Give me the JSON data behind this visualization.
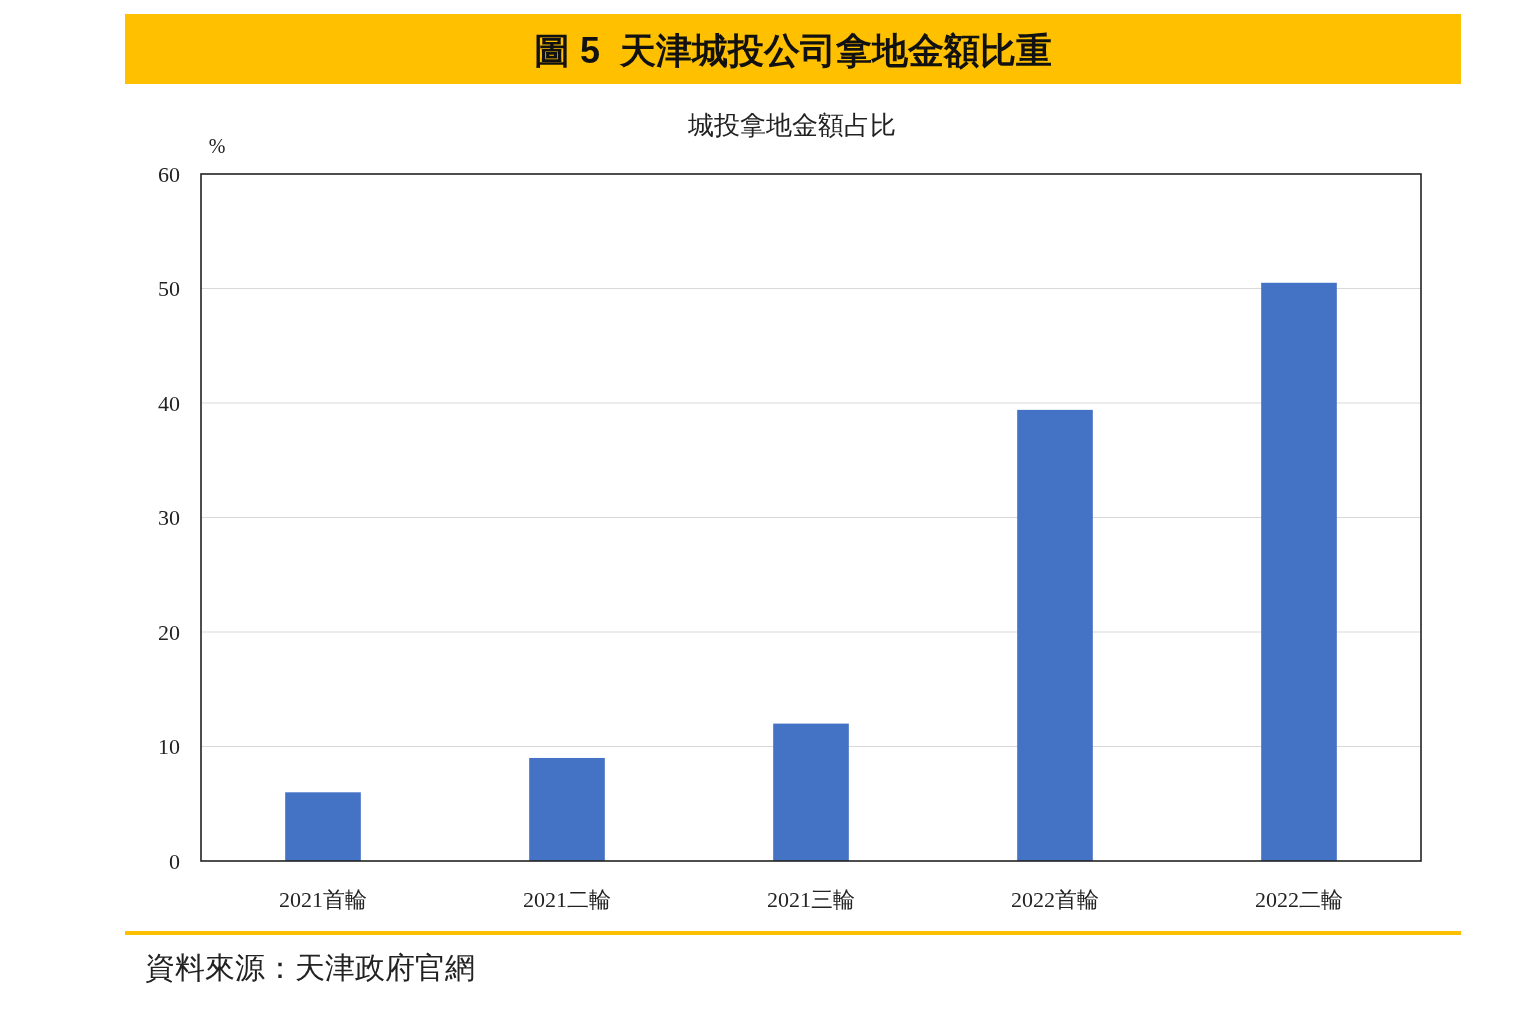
{
  "chart_data": {
    "type": "bar",
    "title": "圖 5  天津城投公司拿地金額比重",
    "subtitle": "城投拿地金額占比",
    "ylabel": "%",
    "categories": [
      "2021首輪",
      "2021二輪",
      "2021三輪",
      "2022首輪",
      "2022二輪"
    ],
    "values": [
      6.0,
      9.0,
      12.0,
      39.4,
      50.5
    ],
    "color": "#4472c4",
    "ylim": [
      0,
      60
    ],
    "yticks": [
      0,
      10,
      20,
      30,
      40,
      50,
      60
    ],
    "grid": "y",
    "annotations": [
      "資料來源：天津政府官網"
    ]
  }
}
